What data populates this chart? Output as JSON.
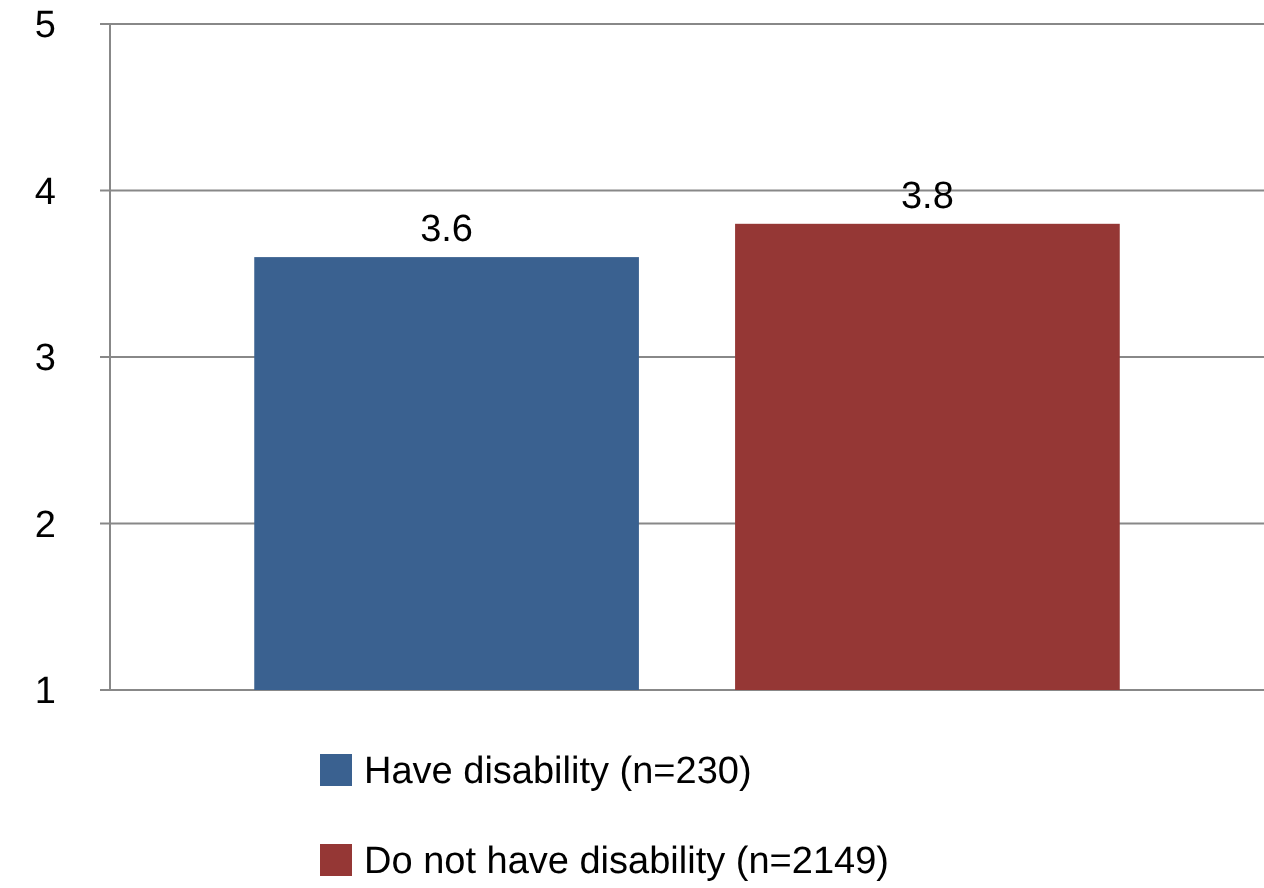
{
  "chart_data": {
    "type": "bar",
    "categories": [
      null
    ],
    "series": [
      {
        "name": "Have disability (n=230)",
        "color": "#3a6190",
        "values": [
          3.6
        ]
      },
      {
        "name": "Do not have disability (n=2149)",
        "color": "#953735",
        "values": [
          3.8
        ]
      }
    ],
    "ylim": [
      1,
      5
    ],
    "yticks": [
      1,
      2,
      3,
      4,
      5
    ],
    "grid": "y",
    "legend": "bottom",
    "data_labels": true
  }
}
